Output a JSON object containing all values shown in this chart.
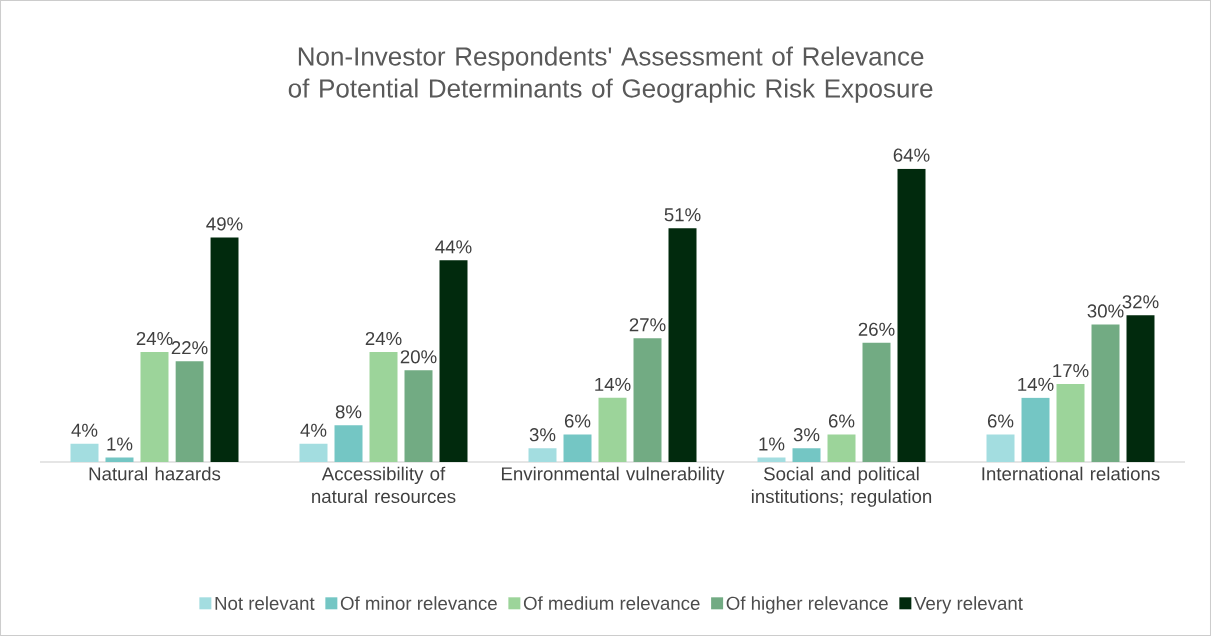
{
  "chart_data": {
    "type": "bar",
    "title": "Non-Investor Respondents' Assessment of Relevance of Potential Determinants of Geographic Risk Exposure",
    "categories": [
      "Natural hazards",
      "Accessibility of natural resources",
      "Environmental vulnerability",
      "Social and political institutions; regulation",
      "International relations"
    ],
    "series": [
      {
        "name": "Not relevant",
        "color": "#a3dde0",
        "values": [
          4,
          4,
          3,
          1,
          6
        ],
        "value_labels": [
          "4%",
          "4%",
          "3%",
          "1%",
          "6%"
        ]
      },
      {
        "name": "Of minor relevance",
        "color": "#74c6c4",
        "values": [
          1,
          8,
          6,
          3,
          14
        ],
        "value_labels": [
          "1%",
          "8%",
          "6%",
          "3%",
          "14%"
        ]
      },
      {
        "name": "Of medium relevance",
        "color": "#9cd49a",
        "values": [
          24,
          24,
          14,
          6,
          17
        ],
        "value_labels": [
          "24%",
          "24%",
          "14%",
          "6%",
          "17%"
        ]
      },
      {
        "name": "Of higher relevance",
        "color": "#72ab83",
        "values": [
          22,
          20,
          27,
          26,
          30
        ],
        "value_labels": [
          "22%",
          "20%",
          "27%",
          "26%",
          "30%"
        ]
      },
      {
        "name": "Very relevant",
        "color": "#012a0d",
        "values": [
          49,
          44,
          51,
          64,
          32
        ],
        "value_labels": [
          "49%",
          "44%",
          "51%",
          "64%",
          "32%"
        ]
      }
    ],
    "legend": "bottom",
    "grid": false
  }
}
